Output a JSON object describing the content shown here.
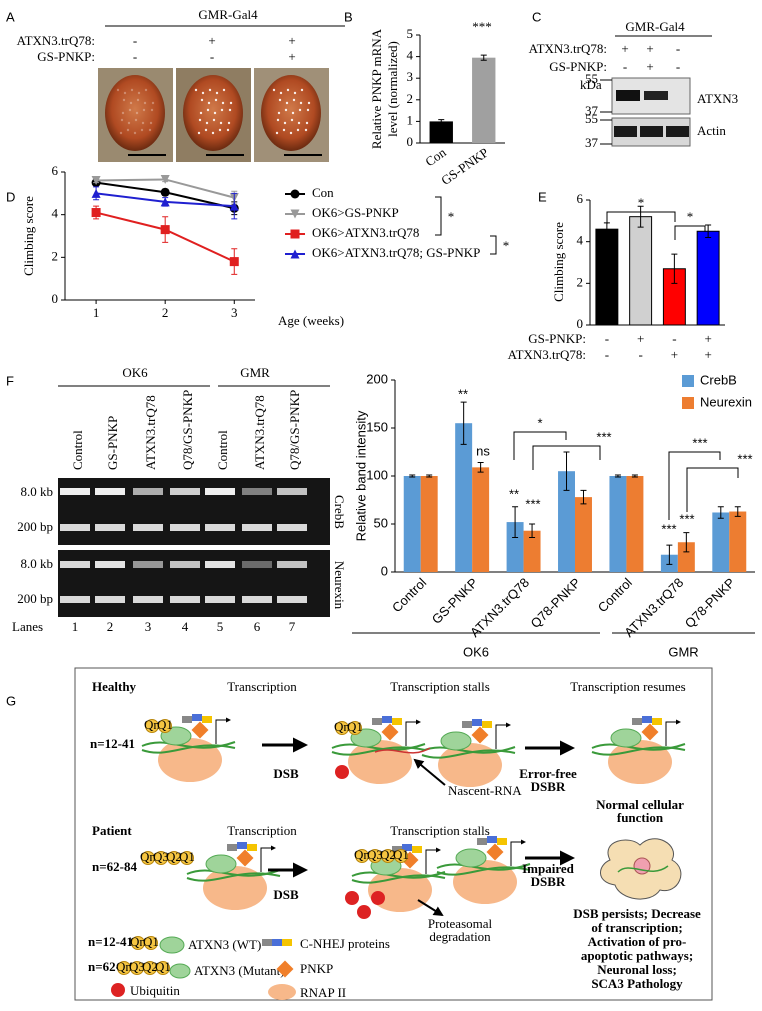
{
  "panel_labels": [
    "A",
    "B",
    "C",
    "D",
    "E",
    "F",
    "G"
  ],
  "panel_a": {
    "header": "GMR-Gal4",
    "rows": [
      {
        "label": "ATXN3.trQ78:",
        "signs": [
          "-",
          "+",
          "+"
        ]
      },
      {
        "label": "GS-PNKP:",
        "signs": [
          "-",
          "-",
          "+"
        ]
      }
    ]
  },
  "panel_c": {
    "header": "GMR-Gal4",
    "rows": [
      {
        "label": "ATXN3.trQ78:",
        "signs": [
          "+",
          "+",
          "-"
        ]
      },
      {
        "label": "GS-PNKP:",
        "signs": [
          "-",
          "+",
          "-"
        ]
      }
    ],
    "unit": "kDa",
    "markers": [
      55,
      37,
      55,
      37
    ],
    "proteins": [
      "ATXN3",
      "Actin"
    ]
  },
  "panel_f_gel": {
    "groups": [
      "OK6",
      "GMR"
    ],
    "lanes": [
      "Control",
      "GS-PNKP",
      "ATXN3.trQ78",
      "Q78/GS-PNKP",
      "Control",
      "ATXN3.trQ78",
      "Q78/GS-PNKP"
    ],
    "size_labels": [
      "8.0 kb",
      "200 bp",
      "8.0 kb",
      "200 bp"
    ],
    "genes": [
      "CrebB",
      "Neurexin"
    ],
    "lanes_label": "Lanes",
    "lane_numbers": [
      1,
      2,
      3,
      4,
      5,
      6,
      7
    ]
  },
  "chart_data": [
    {
      "type": "bar",
      "ylabel": [
        "Relative PNKP mRNA",
        "level (normalized)"
      ],
      "categories": [
        "Con",
        "GS-PNKP"
      ],
      "values": [
        1,
        3.95
      ],
      "errors": [
        0.08,
        0.12
      ],
      "colors": [
        "#000000",
        "#a0a0a0"
      ],
      "ylim": [
        0,
        5
      ],
      "yticks": [
        0,
        1,
        2,
        3,
        4,
        5
      ],
      "annotations": [
        "***"
      ]
    },
    {
      "type": "line",
      "xlabel": "Age (weeks)",
      "ylabel": "Climbing score",
      "x": [
        1,
        2,
        3
      ],
      "xlim": [
        0.55,
        3.3
      ],
      "xticks": [
        1,
        2,
        3
      ],
      "ylim": [
        0,
        6
      ],
      "yticks": [
        0,
        2,
        4,
        6
      ],
      "series": [
        {
          "name": "Con",
          "color": "#000000",
          "marker": "circle",
          "values": [
            5.5,
            5.05,
            4.3
          ],
          "errors": [
            0.1,
            0.15,
            0.3
          ]
        },
        {
          "name": "OK6>GS-PNKP",
          "color": "#999999",
          "marker": "triangle-down",
          "values": [
            5.6,
            5.65,
            4.8
          ],
          "errors": [
            0.1,
            0.1,
            0.3
          ]
        },
        {
          "name": "OK6>ATXN3.trQ78",
          "color": "#e02020",
          "marker": "square",
          "values": [
            4.1,
            3.3,
            1.8
          ],
          "errors": [
            0.3,
            0.6,
            0.6
          ]
        },
        {
          "name": "OK6>ATXN3.trQ78; GS-PNKP",
          "color": "#2020d0",
          "marker": "triangle",
          "values": [
            5.0,
            4.6,
            4.4
          ],
          "errors": [
            0.3,
            0.2,
            0.6
          ]
        }
      ],
      "annotations": [
        "*",
        "*"
      ]
    },
    {
      "type": "bar",
      "ylabel": "Climbing score",
      "values": [
        4.6,
        5.2,
        2.7,
        4.5
      ],
      "errors": [
        0.3,
        0.5,
        0.7,
        0.3
      ],
      "colors": [
        "#000000",
        "#d0d0d0",
        "#ff0000",
        "#0000ff"
      ],
      "ylim": [
        0,
        6
      ],
      "yticks": [
        0,
        2,
        4,
        6
      ],
      "conditions": [
        {
          "label": "GS-PNKP:",
          "signs": [
            "-",
            "+",
            "-",
            "+"
          ]
        },
        {
          "label": "ATXN3.trQ78:",
          "signs": [
            "-",
            "-",
            "+",
            "+"
          ]
        }
      ],
      "annotations": [
        "*",
        "*"
      ]
    },
    {
      "type": "bar",
      "ylabel": "Relative band intensity",
      "categories": [
        "Control",
        "GS-PNKP",
        "ATXN3.trQ78",
        "Q78-PNKP",
        "Control",
        "ATXN3.trQ78",
        "Q78-PNKP"
      ],
      "ylim": [
        0,
        200
      ],
      "yticks": [
        0,
        50,
        100,
        150,
        200
      ],
      "series": [
        {
          "name": "CrebB",
          "color": "#5b9bd5",
          "values": [
            100,
            155,
            52,
            105,
            100,
            18,
            62
          ],
          "errors": [
            1,
            22,
            16,
            20,
            1,
            10,
            6
          ]
        },
        {
          "name": "Neurexin",
          "color": "#ed7d31",
          "values": [
            100,
            109,
            43,
            78,
            100,
            31,
            63
          ],
          "errors": [
            1,
            5,
            7,
            7,
            1,
            10,
            5
          ]
        }
      ],
      "groups": [
        "OK6",
        "GMR"
      ],
      "annotations": [
        "**",
        "ns",
        "**",
        "***",
        "*",
        "***",
        "***",
        "***",
        "***",
        "***"
      ]
    }
  ],
  "panel_g": {
    "healthy": {
      "title": "Healthy",
      "steps": [
        "Transcription",
        "Transcription stalls",
        "Transcription resumes"
      ],
      "repeat": "n=12-41",
      "q_labels": [
        "Qn",
        "Q1"
      ],
      "break": "DSB",
      "rna": "Nascent-RNA",
      "repair": [
        "Error-free",
        "DSBR"
      ],
      "outcome": [
        "Normal cellular",
        "function"
      ]
    },
    "patient": {
      "title": "Patient",
      "steps": [
        "Transcription",
        "Transcription stalls"
      ],
      "repeat": "n=62-84",
      "q_labels": [
        "Qn",
        "Q3",
        "Q2",
        "Q1"
      ],
      "break": "DSB",
      "fate": [
        "Proteasomal",
        "degradation"
      ],
      "repair": [
        "Impaired",
        "DSBR"
      ],
      "outcome": [
        "DSB persists; Decrease",
        "of transcription;",
        "Activation of pro-",
        "apoptotic pathways;",
        "Neuronal loss;",
        "SCA3 Pathology"
      ]
    },
    "legend": {
      "wt_repeat": "n=12-41",
      "wt": "ATXN3 (WT)",
      "mut_repeat": "n=62-84",
      "mut": "ATXN3 (Mutant)",
      "ubiquitin": "Ubiquitin",
      "nhej": "C-NHEJ proteins",
      "pnkp": "PNKP",
      "rnap": "RNAP II"
    }
  }
}
